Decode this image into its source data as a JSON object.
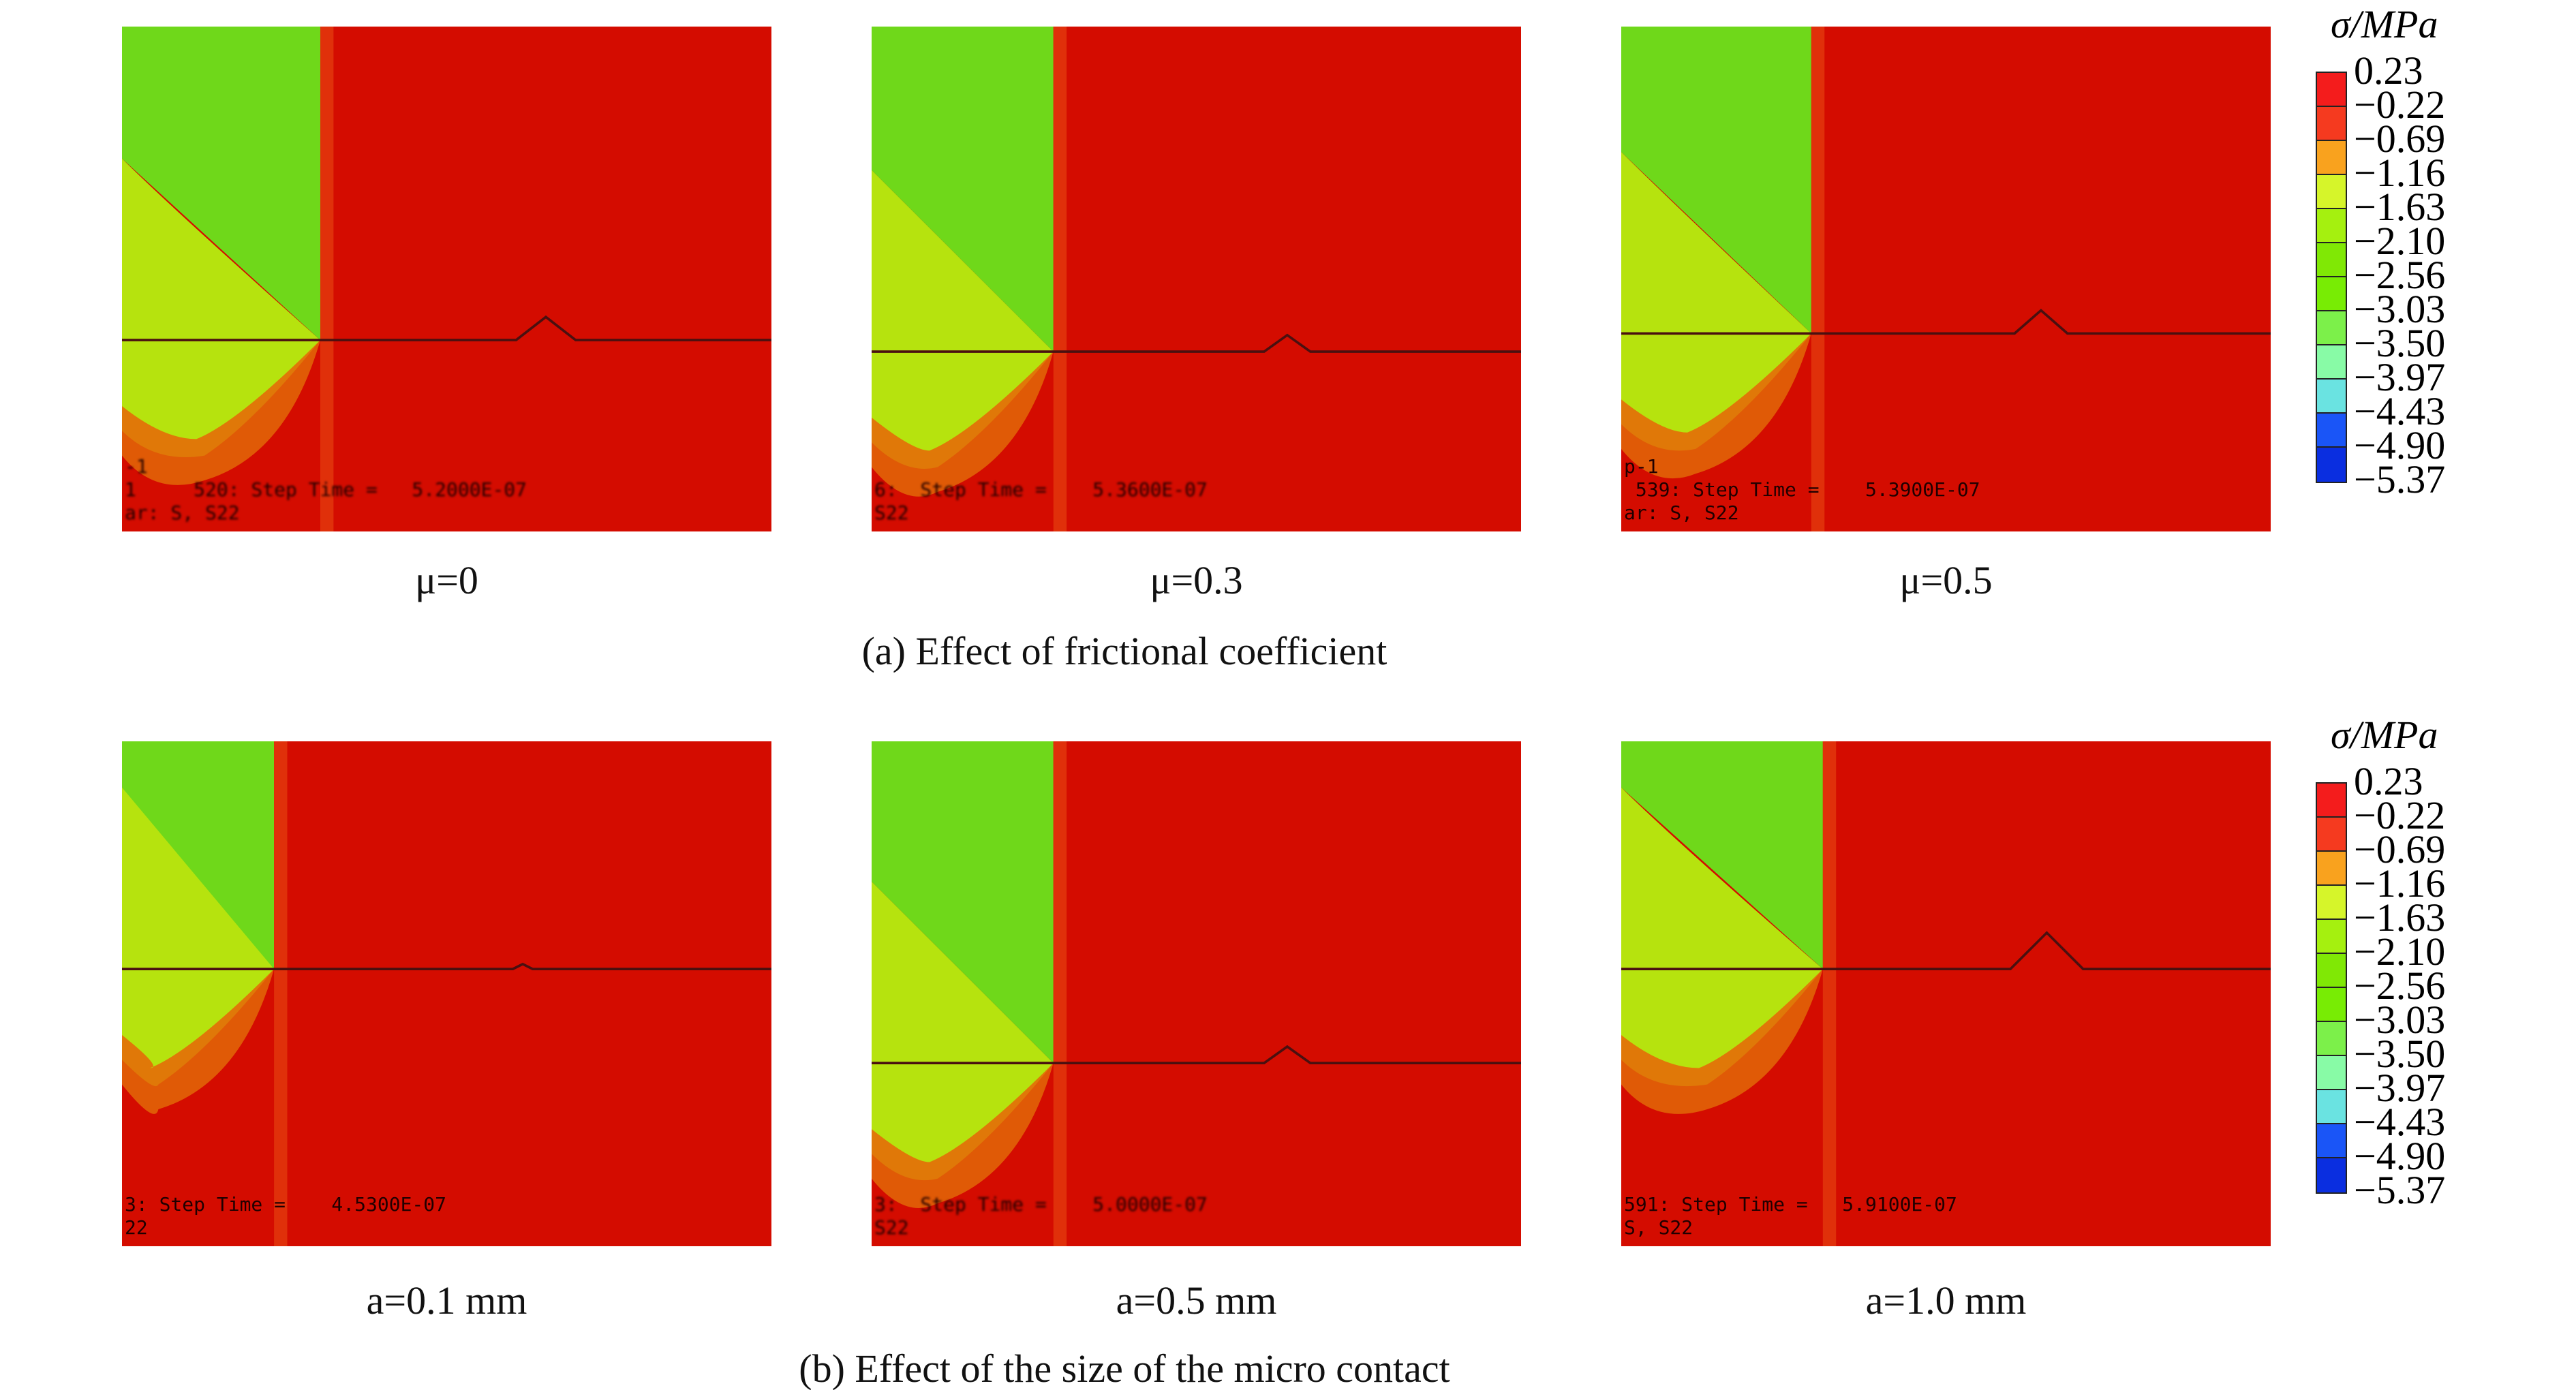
{
  "rows": [
    {
      "caption": "(a) Effect of frictional coefficient",
      "panels": [
        {
          "label": "μ=0",
          "step_lines": [
            "-1",
            "1     520: Step Time =   5.2000E-07",
            "ar: S, S22"
          ]
        },
        {
          "label": "μ=0.3",
          "step_lines": [
            "",
            "6:  Step Time =    5.3600E-07",
            "S22"
          ]
        },
        {
          "label": "μ=0.5",
          "step_lines": [
            "p-1",
            " 539: Step Time =    5.3900E-07",
            "ar: S, S22"
          ]
        }
      ]
    },
    {
      "caption": "(b) Effect of the size of the micro contact",
      "panels": [
        {
          "label": "a=0.1 mm",
          "step_lines": [
            "",
            "3: Step Time =    4.5300E-07",
            "22"
          ]
        },
        {
          "label": "a=0.5 mm",
          "step_lines": [
            "",
            "3:  Step Time =    5.0000E-07",
            "S22"
          ]
        },
        {
          "label": "a=1.0 mm",
          "step_lines": [
            "",
            "591: Step Time =   5.9100E-07",
            "S, S22"
          ]
        }
      ]
    }
  ],
  "legend": {
    "title": "σ/MPa",
    "labels": [
      "0.23",
      "−0.22",
      "−0.69",
      "−1.16",
      "−1.63",
      "−2.10",
      "−2.56",
      "−3.03",
      "−3.50",
      "−3.97",
      "−4.43",
      "−4.90",
      "−5.37"
    ],
    "colors": [
      "#f41c1c",
      "#f53a1f",
      "#f9a21e",
      "#d6f52a",
      "#a5f00f",
      "#80e805",
      "#78ec04",
      "#7cf04a",
      "#88fba6",
      "#6ae3e1",
      "#1a55f7",
      "#0a2ee0"
    ]
  },
  "colors": {
    "background_red": "#d40c00",
    "green": "#6fd81a",
    "yellow_green": "#b6e30e",
    "orange": "#e07808"
  }
}
